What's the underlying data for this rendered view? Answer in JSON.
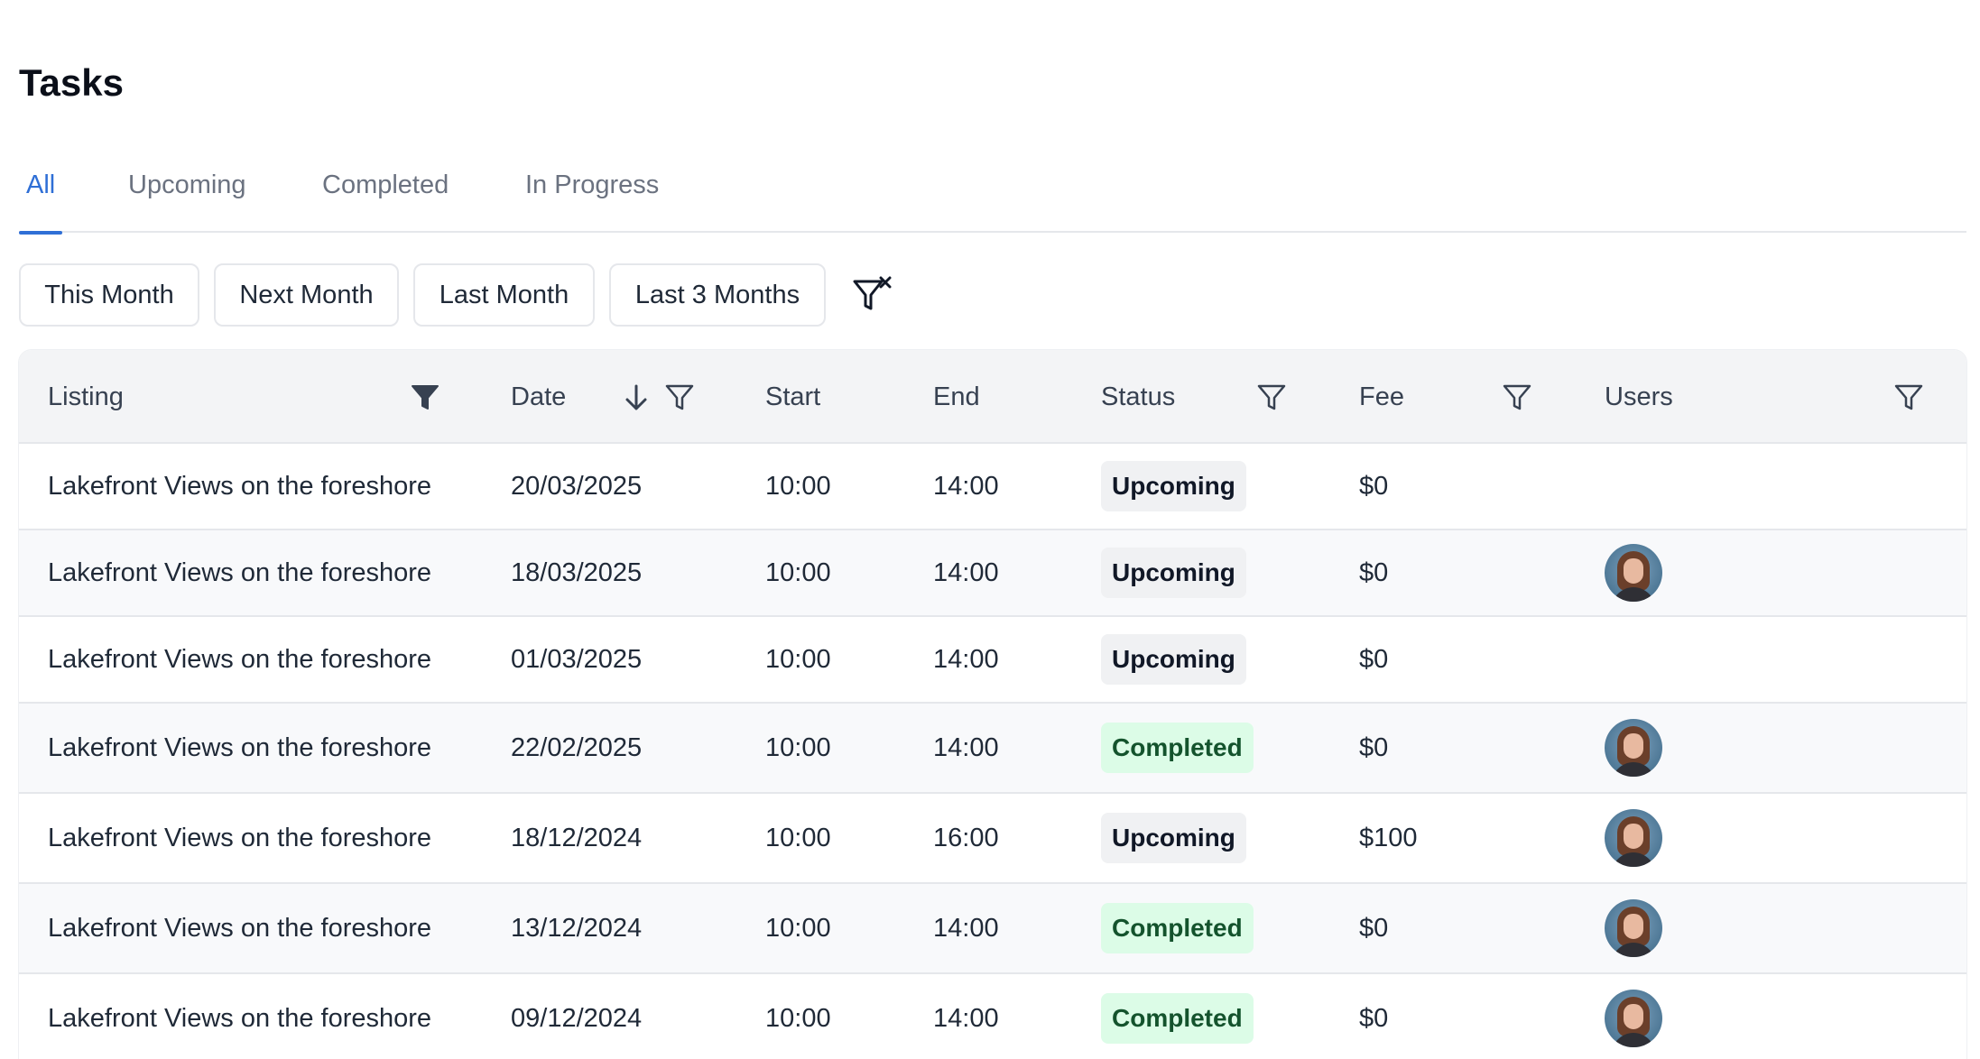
{
  "page": {
    "title": "Tasks"
  },
  "tabs": [
    {
      "label": "All",
      "active": true
    },
    {
      "label": "Upcoming",
      "active": false
    },
    {
      "label": "Completed",
      "active": false
    },
    {
      "label": "In Progress",
      "active": false
    }
  ],
  "date_filters": [
    "This Month",
    "Next Month",
    "Last Month",
    "Last 3 Months"
  ],
  "clear_filter_icon": "filter-clear-icon",
  "table": {
    "columns": {
      "listing": "Listing",
      "date": "Date",
      "start": "Start",
      "end": "End",
      "status": "Status",
      "fee": "Fee",
      "users": "Users"
    },
    "sort": {
      "column": "date",
      "direction": "descending"
    },
    "active_filter_column": "listing",
    "rows": [
      {
        "listing": "Lakefront Views on the foreshore",
        "date": "20/03/2025",
        "start": "10:00",
        "end": "14:00",
        "status": "Upcoming",
        "fee": "$0",
        "has_user": false
      },
      {
        "listing": "Lakefront Views on the foreshore",
        "date": "18/03/2025",
        "start": "10:00",
        "end": "14:00",
        "status": "Upcoming",
        "fee": "$0",
        "has_user": true
      },
      {
        "listing": "Lakefront Views on the foreshore",
        "date": "01/03/2025",
        "start": "10:00",
        "end": "14:00",
        "status": "Upcoming",
        "fee": "$0",
        "has_user": false
      },
      {
        "listing": "Lakefront Views on the foreshore",
        "date": "22/02/2025",
        "start": "10:00",
        "end": "14:00",
        "status": "Completed",
        "fee": "$0",
        "has_user": true
      },
      {
        "listing": "Lakefront Views on the foreshore",
        "date": "18/12/2024",
        "start": "10:00",
        "end": "16:00",
        "status": "Upcoming",
        "fee": "$100",
        "has_user": true
      },
      {
        "listing": "Lakefront Views on the foreshore",
        "date": "13/12/2024",
        "start": "10:00",
        "end": "14:00",
        "status": "Completed",
        "fee": "$0",
        "has_user": true
      },
      {
        "listing": "Lakefront Views on the foreshore",
        "date": "09/12/2024",
        "start": "10:00",
        "end": "14:00",
        "status": "Completed",
        "fee": "$0",
        "has_user": true
      }
    ]
  },
  "colors": {
    "accent": "#2f6fd6",
    "completed_badge_bg": "#dcfce7",
    "completed_badge_text": "#14532d",
    "upcoming_badge_bg": "#f0f1f3"
  }
}
